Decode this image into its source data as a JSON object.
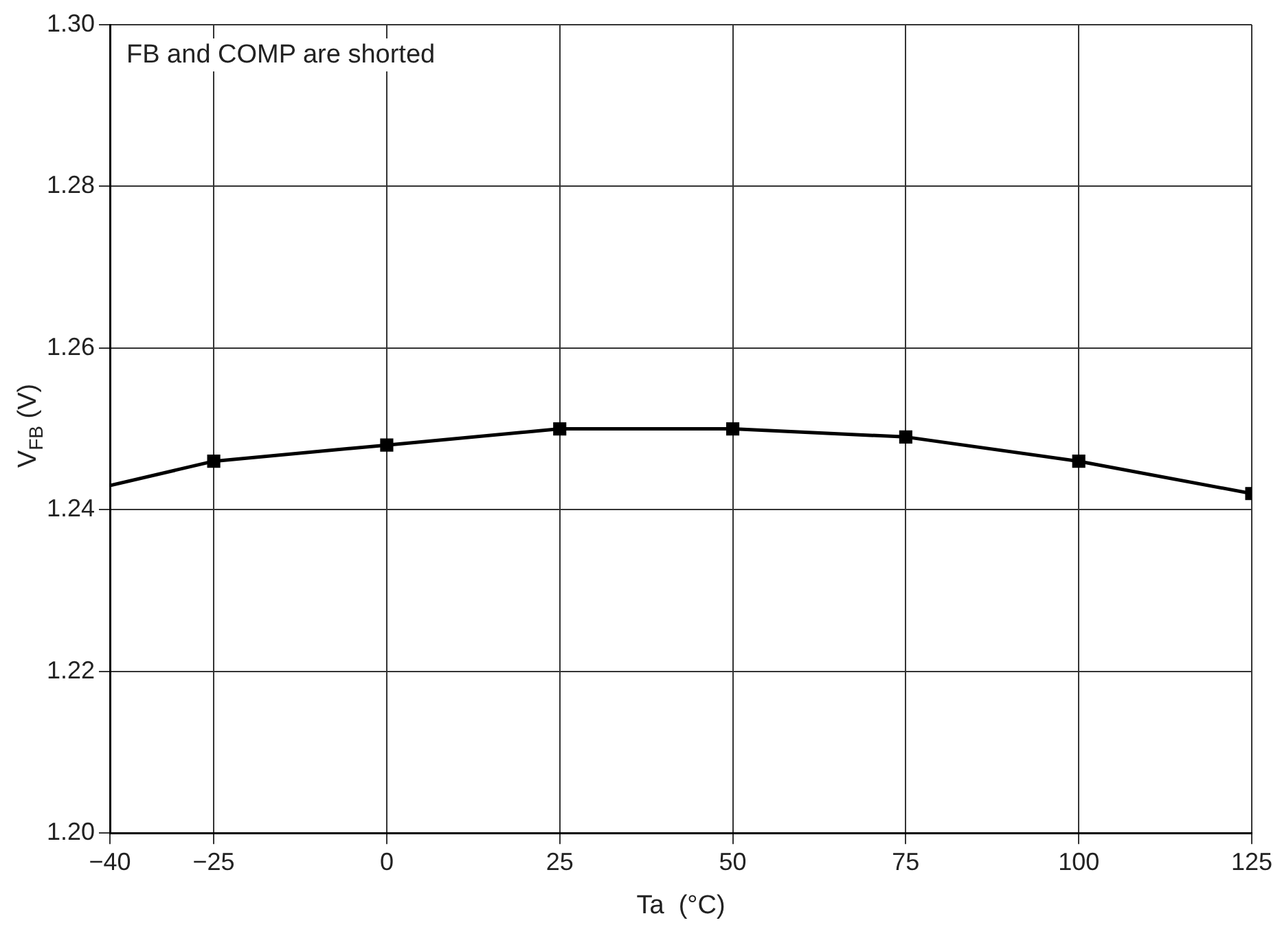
{
  "chart_data": {
    "type": "line",
    "xlabel": "Ta  (°C)",
    "ylabel": "V$_{FB}$  (V)",
    "annotations": [
      "FB and COMP are shorted"
    ],
    "x": [
      -40,
      -25,
      0,
      25,
      50,
      75,
      100,
      125
    ],
    "series": [
      {
        "color": "#000000",
        "values": [
          1.243,
          1.246,
          1.248,
          1.25,
          1.25,
          1.249,
          1.246,
          1.242
        ]
      }
    ],
    "xlim": [
      -40,
      125
    ],
    "xticks": [
      {
        "value": -40,
        "label": "−40"
      },
      {
        "value": -25,
        "label": "−25"
      },
      0,
      25,
      50,
      75,
      100,
      125
    ],
    "ylim": [
      1.2,
      1.3
    ],
    "yticks": [
      {
        "value": 1.2,
        "label": "1.20"
      },
      {
        "value": 1.22,
        "label": "1.22"
      },
      {
        "value": 1.24,
        "label": "1.24"
      },
      {
        "value": 1.26,
        "label": "1.26"
      },
      {
        "value": 1.28,
        "label": "1.28"
      },
      {
        "value": 1.3,
        "label": "1.30"
      }
    ],
    "grid": true,
    "legend": false,
    "marker": "square",
    "line_style": "solid"
  }
}
